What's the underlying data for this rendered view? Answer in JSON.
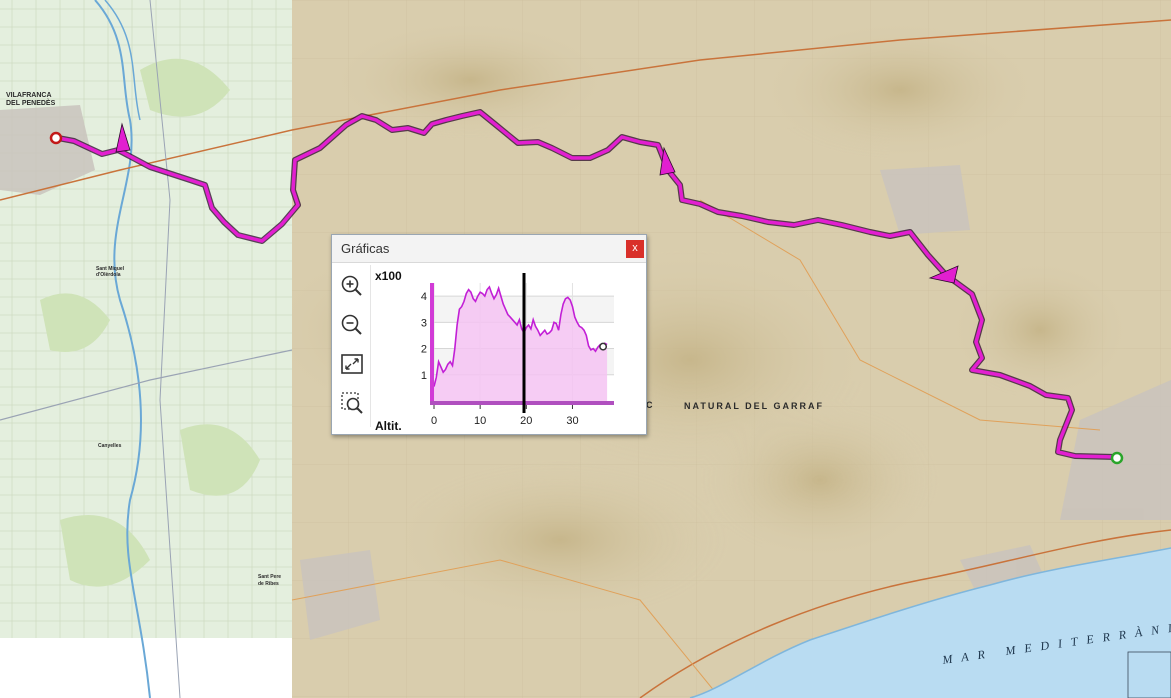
{
  "map": {
    "towns": [
      {
        "text": "VILAFRANCA"
      },
      {
        "text": "DEL PENEDÈS"
      },
      {
        "text": "Sant Miquel"
      },
      {
        "text": "d'Olèrdola"
      },
      {
        "text": "Canyelles"
      },
      {
        "text": "Sant Pere"
      },
      {
        "text": "de Ribes"
      }
    ],
    "park_label": "NATURAL  DEL  GARRAF",
    "park_prefix": "C",
    "sea_label": "MAR  MEDITERRÀNIA",
    "colors": {
      "route": "#e21fd0",
      "route_shadow": "#2a0a2a",
      "start": "#c21818",
      "end": "#2aa52a",
      "sea": "#b9dcf2",
      "terrain": "#d8ccac",
      "plain": "#e3eedd"
    }
  },
  "panel": {
    "title": "Gráficas",
    "close_label": "x",
    "tools": [
      "zoom-in-icon",
      "zoom-out-icon",
      "fit-extent-icon",
      "zoom-box-icon"
    ]
  },
  "chart_data": {
    "type": "area",
    "ylabel": "Altit.",
    "y_multiplier_label": "x100",
    "x_ticks": [
      0,
      10,
      20,
      30
    ],
    "y_ticks": [
      1,
      2,
      3,
      4
    ],
    "xlim": [
      0,
      39
    ],
    "ylim": [
      0,
      4.5
    ],
    "cursor_x": 19.5,
    "colors": {
      "line": "#c21fd6",
      "fill": "#f5c3f2",
      "cursor": "#000000"
    },
    "x": [
      0,
      0.5,
      1,
      1.5,
      2,
      2.5,
      3,
      3.5,
      4,
      4.5,
      5,
      5.5,
      6,
      6.5,
      7,
      7.5,
      8,
      8.5,
      9,
      9.5,
      10,
      10.5,
      11,
      11.5,
      12,
      12.5,
      13,
      13.5,
      14,
      14.5,
      15,
      15.5,
      16,
      16.5,
      17,
      17.5,
      18,
      18.5,
      19,
      19.5,
      20,
      20.5,
      21,
      21.5,
      22,
      22.5,
      23,
      23.5,
      24,
      24.5,
      25,
      25.5,
      26,
      26.5,
      27,
      27.5,
      28,
      28.5,
      29,
      29.5,
      30,
      30.5,
      31,
      31.5,
      32,
      32.5,
      33,
      33.5,
      34,
      34.5,
      35,
      35.5,
      36,
      36.5,
      37,
      37.5
    ],
    "values": [
      0.55,
      0.9,
      1.5,
      1.3,
      1.1,
      1.2,
      1.4,
      1.5,
      1.35,
      2.0,
      2.9,
      3.5,
      3.6,
      3.8,
      4.1,
      4.25,
      4.15,
      3.9,
      3.8,
      4.0,
      4.15,
      4.1,
      4.0,
      4.25,
      4.35,
      4.1,
      3.9,
      4.05,
      4.3,
      4.0,
      3.7,
      3.5,
      3.3,
      3.2,
      3.1,
      3.0,
      2.9,
      3.1,
      2.75,
      2.6,
      2.8,
      2.9,
      2.75,
      3.1,
      2.85,
      2.7,
      2.5,
      2.6,
      2.7,
      2.55,
      2.6,
      2.7,
      3.0,
      2.95,
      2.7,
      3.3,
      3.7,
      3.9,
      3.95,
      3.85,
      3.6,
      3.2,
      3.0,
      2.85,
      2.8,
      2.7,
      2.5,
      2.1,
      1.95,
      2.0,
      1.9,
      2.05,
      2.15,
      2.1,
      2.2,
      2.15
    ]
  }
}
